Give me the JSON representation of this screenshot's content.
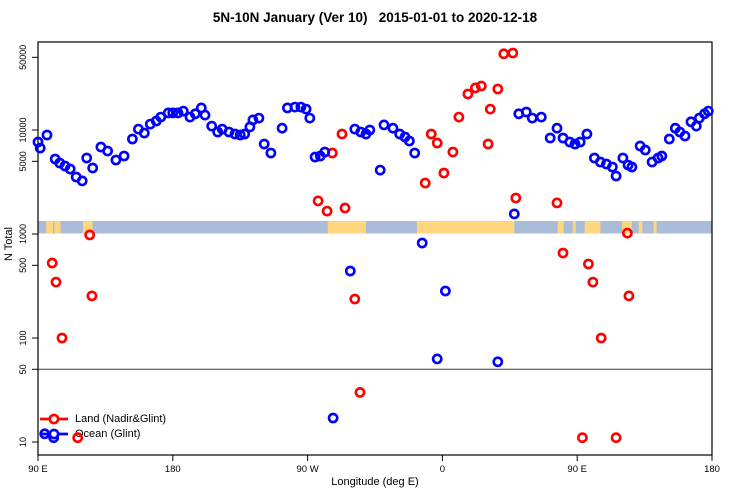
{
  "title": "5N-10N January (Ver 10)   2015-01-01 to 2020-12-18",
  "colors": {
    "land_series": "#ff0000",
    "ocean_series": "#0000ff",
    "strip_ocean": "#a9bdd9",
    "strip_land": "#ffd67e",
    "reference_line": "#3c3c3c",
    "axis": "#000000"
  },
  "axes": {
    "x": {
      "label": "Longitude (deg E)",
      "ticks": [
        {
          "pos": 90,
          "label": "90 E"
        },
        {
          "pos": 180,
          "label": "180"
        },
        {
          "pos": 270,
          "label": "90 W"
        },
        {
          "pos": 360,
          "label": "0"
        },
        {
          "pos": 450,
          "label": "90 E"
        },
        {
          "pos": 540,
          "label": "180"
        }
      ]
    },
    "y": {
      "label": "N Total",
      "scale": "log",
      "ticks": [
        {
          "value": 10,
          "label": "10"
        },
        {
          "value": 50,
          "label": "50"
        },
        {
          "value": 100,
          "label": "100"
        },
        {
          "value": 500,
          "label": "500"
        },
        {
          "value": 1000,
          "label": "1000"
        },
        {
          "value": 5000,
          "label": "5000"
        },
        {
          "value": 10000,
          "label": "10000"
        },
        {
          "value": 50000,
          "label": "50000"
        }
      ]
    }
  },
  "legend": {
    "items": [
      {
        "label": "Land (Nadir&Glint)",
        "series": "land"
      },
      {
        "label": "Ocean (Glint)",
        "series": "ocean"
      }
    ]
  },
  "reference_line_value": 50,
  "map_strip": {
    "note": "land/ocean world strip drawn across the plot at N ~1000-1330",
    "land_segments_lon": [
      [
        95.5,
        100
      ],
      [
        101,
        105
      ],
      [
        120,
        126.5
      ],
      [
        283.5,
        309
      ],
      [
        343,
        408
      ],
      [
        437,
        441
      ],
      [
        447,
        449
      ],
      [
        455,
        465.5
      ],
      [
        480,
        486.5
      ],
      [
        491,
        493.5
      ],
      [
        501,
        503
      ]
    ]
  },
  "chart_data": {
    "type": "scatter",
    "title": "5N-10N January (Ver 10)   2015-01-01 to 2020-12-18",
    "xlabel": "Longitude (deg E)",
    "ylabel": "N Total",
    "x_encoding": "longitude in deg E plotted continuously from 90 to 540 (axis wraps: 90E, 180, 90W, 0, 90E, 180)",
    "xlim": [
      90,
      540
    ],
    "y_scale": "log",
    "ylim": [
      8,
      70000
    ],
    "grid": false,
    "legend_position": "bottom-left",
    "series": [
      {
        "name": "Land (Nadir&Glint)",
        "color": "#ff0000",
        "points": [
          [
            124.5,
            980
          ],
          [
            277,
            2080
          ],
          [
            283,
            1660
          ],
          [
            295,
            1780
          ],
          [
            286.5,
            6010
          ],
          [
            293,
            9160
          ],
          [
            348.5,
            3090
          ],
          [
            352.5,
            9160
          ],
          [
            356.5,
            7500
          ],
          [
            361,
            3860
          ],
          [
            367,
            6140
          ],
          [
            371,
            13300
          ],
          [
            377,
            22200
          ],
          [
            382,
            25400
          ],
          [
            386,
            26500
          ],
          [
            390.5,
            7330
          ],
          [
            392,
            15900
          ],
          [
            397,
            24800
          ],
          [
            401,
            54000
          ],
          [
            407,
            55000
          ],
          [
            409,
            2220
          ],
          [
            436.5,
            1990
          ],
          [
            483.5,
            1020
          ],
          [
            99.5,
            526
          ],
          [
            102,
            345
          ],
          [
            106,
            100
          ],
          [
            116.5,
            11
          ],
          [
            126,
            254
          ],
          [
            301.5,
            237
          ],
          [
            305,
            30
          ],
          [
            440.5,
            656
          ],
          [
            457.5,
            515
          ],
          [
            460.5,
            345
          ],
          [
            466,
            100
          ],
          [
            484.5,
            254
          ],
          [
            453.5,
            11
          ],
          [
            476,
            11
          ]
        ]
      },
      {
        "name": "Ocean (Glint)",
        "color": "#0000ff",
        "points": [
          [
            90,
            7670
          ],
          [
            91.5,
            6710
          ],
          [
            96,
            8950
          ],
          [
            101.5,
            5260
          ],
          [
            104.5,
            4820
          ],
          [
            108,
            4510
          ],
          [
            111.5,
            4220
          ],
          [
            115.5,
            3530
          ],
          [
            119.5,
            3240
          ],
          [
            122.5,
            5380
          ],
          [
            126.5,
            4310
          ],
          [
            132,
            6870
          ],
          [
            136.5,
            6280
          ],
          [
            142,
            5150
          ],
          [
            147.5,
            5620
          ],
          [
            153,
            8190
          ],
          [
            157,
            10200
          ],
          [
            161,
            9360
          ],
          [
            165,
            11400
          ],
          [
            169,
            12200
          ],
          [
            172,
            13300
          ],
          [
            177,
            14600
          ],
          [
            180,
            14600
          ],
          [
            183.5,
            14600
          ],
          [
            187,
            15200
          ],
          [
            191.5,
            13300
          ],
          [
            195,
            14300
          ],
          [
            199,
            16300
          ],
          [
            201.5,
            13900
          ],
          [
            206,
            10900
          ],
          [
            210,
            9570
          ],
          [
            213,
            10200
          ],
          [
            217.5,
            9570
          ],
          [
            221.5,
            9160
          ],
          [
            225,
            8950
          ],
          [
            228,
            9160
          ],
          [
            231.5,
            10700
          ],
          [
            233.5,
            12500
          ],
          [
            237.5,
            13000
          ],
          [
            241,
            7330
          ],
          [
            245.5,
            6010
          ],
          [
            253,
            10400
          ],
          [
            256.5,
            16300
          ],
          [
            261.5,
            16600
          ],
          [
            265.5,
            16600
          ],
          [
            269,
            15900
          ],
          [
            271.5,
            13000
          ],
          [
            275,
            5500
          ],
          [
            278.5,
            5620
          ],
          [
            281.5,
            6140
          ],
          [
            301.5,
            10200
          ],
          [
            305.5,
            9570
          ],
          [
            309,
            9160
          ],
          [
            311.5,
            10000
          ],
          [
            318.5,
            4120
          ],
          [
            321,
            11200
          ],
          [
            327,
            10400
          ],
          [
            331.5,
            9160
          ],
          [
            335,
            8570
          ],
          [
            338,
            7830
          ],
          [
            341.5,
            6010
          ],
          [
            346.5,
            820
          ],
          [
            356.5,
            63
          ],
          [
            362,
            283
          ],
          [
            397,
            59
          ],
          [
            408,
            1560
          ],
          [
            411,
            14300
          ],
          [
            416,
            14900
          ],
          [
            420,
            13000
          ],
          [
            426,
            13300
          ],
          [
            432,
            8380
          ],
          [
            436.5,
            10400
          ],
          [
            440.5,
            8380
          ],
          [
            445,
            7670
          ],
          [
            448.5,
            7330
          ],
          [
            452,
            7670
          ],
          [
            456.5,
            9160
          ],
          [
            461.5,
            5380
          ],
          [
            465.5,
            4920
          ],
          [
            469.5,
            4710
          ],
          [
            473.5,
            4410
          ],
          [
            476,
            3610
          ],
          [
            480.5,
            5380
          ],
          [
            484,
            4600
          ],
          [
            486.5,
            4410
          ],
          [
            492,
            7010
          ],
          [
            495.5,
            6420
          ],
          [
            500,
            4920
          ],
          [
            504,
            5380
          ],
          [
            506.5,
            5620
          ],
          [
            511.5,
            8190
          ],
          [
            515.5,
            10400
          ],
          [
            518.5,
            9570
          ],
          [
            522,
            8760
          ],
          [
            526,
            12000
          ],
          [
            529.5,
            10900
          ],
          [
            531.5,
            13000
          ],
          [
            535,
            14300
          ],
          [
            537.5,
            15200
          ],
          [
            94.5,
            12
          ],
          [
            100.5,
            11
          ],
          [
            287,
            17
          ],
          [
            298.5,
            441
          ]
        ]
      }
    ]
  }
}
